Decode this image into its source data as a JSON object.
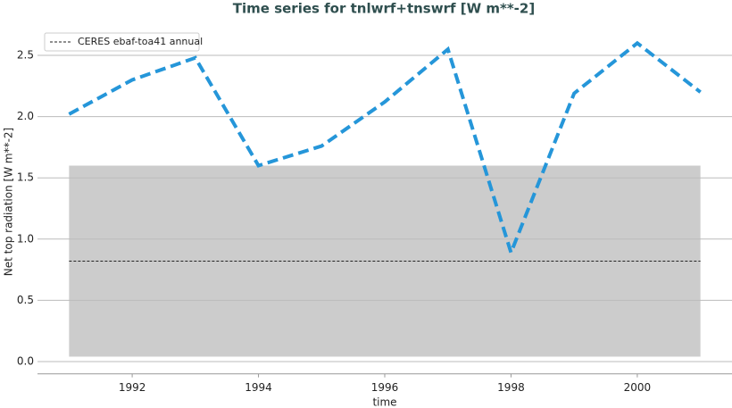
{
  "chart_data": {
    "type": "line",
    "title": "Time series for tnlwrf+tnswrf [W m**-2]",
    "x_label": "time",
    "y_label": "Net top radiation [W m**-2]",
    "x": [
      1991,
      1992,
      1993,
      1994,
      1995,
      1996,
      1997,
      1998,
      1999,
      2000,
      2001
    ],
    "values": [
      2.02,
      2.3,
      2.48,
      1.6,
      1.76,
      2.12,
      2.55,
      0.89,
      2.19,
      2.6,
      2.2
    ],
    "color": "#2596d9",
    "reference": {
      "name": "CERES ebaf-toa41 annual",
      "value": 0.82,
      "color": "#222222",
      "band": [
        0.04,
        1.6
      ],
      "band_color": "#cccccc",
      "x": [
        1991,
        2001
      ]
    },
    "xlim": [
      1990.5,
      2001.5
    ],
    "ylim": [
      -0.1,
      2.7
    ],
    "xticks": [
      1992,
      1994,
      1996,
      1998,
      2000
    ],
    "yticks": [
      {
        "value": 0,
        "label": "0.0"
      },
      {
        "value": 0.5,
        "label": "0.5"
      },
      {
        "value": 1,
        "label": "1.0"
      },
      {
        "value": 1.5,
        "label": "1.5"
      },
      {
        "value": 2,
        "label": "2.0"
      },
      {
        "value": 2.5,
        "label": "2.5"
      }
    ],
    "grid": true,
    "legend": "upper-left"
  }
}
